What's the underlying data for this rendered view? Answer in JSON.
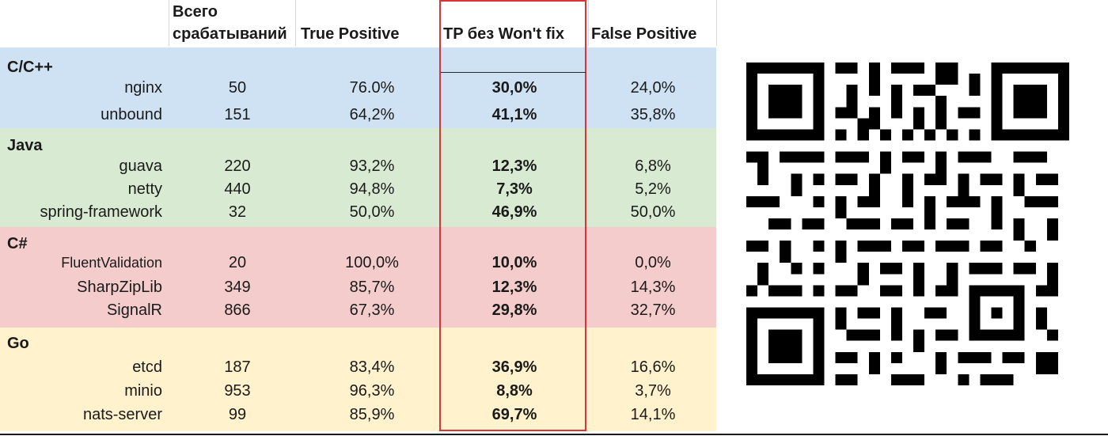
{
  "table": {
    "headers": {
      "total_line1": "Всего",
      "total_line2": "срабатываний",
      "tp": "True Positive",
      "tp_without_wont_fix": "TP без Won't fix",
      "fp": "False Positive"
    },
    "groups": [
      {
        "label": "C/C++",
        "color": "#cfe2f3",
        "rows": [
          {
            "name": "nginx",
            "total": "50",
            "tp": "76.0%",
            "tpw": "30,0%",
            "fp": "24,0%"
          },
          {
            "name": "unbound",
            "total": "151",
            "tp": "64,2%",
            "tpw": "41,1%",
            "fp": "35,8%"
          }
        ]
      },
      {
        "label": "Java",
        "color": "#d9ead3",
        "rows": [
          {
            "name": "guava",
            "total": "220",
            "tp": "93,2%",
            "tpw": "12,3%",
            "fp": "6,8%"
          },
          {
            "name": "netty",
            "total": "440",
            "tp": "94,8%",
            "tpw": "7,3%",
            "fp": "5,2%"
          },
          {
            "name": "spring-framework",
            "total": "32",
            "tp": "50,0%",
            "tpw": "46,9%",
            "fp": "50,0%"
          }
        ]
      },
      {
        "label": "C#",
        "color": "#f4cccc",
        "rows": [
          {
            "name": "FluentValidation",
            "total": "20",
            "tp": "100,0%",
            "tpw": "10,0%",
            "fp": "0,0%"
          },
          {
            "name": "SharpZipLib",
            "total": "349",
            "tp": "85,7%",
            "tpw": "12,3%",
            "fp": "14,3%"
          },
          {
            "name": "SignalR",
            "total": "866",
            "tp": "67,3%",
            "tpw": "29,8%",
            "fp": "32,7%"
          }
        ]
      },
      {
        "label": "Go",
        "color": "#fff2cc",
        "rows": [
          {
            "name": "etcd",
            "total": "187",
            "tp": "83,4%",
            "tpw": "36,9%",
            "fp": "16,6%"
          },
          {
            "name": "minio",
            "total": "953",
            "tp": "96,3%",
            "tpw": "8,8%",
            "fp": "3,7%"
          },
          {
            "name": "nats-server",
            "total": "99",
            "tp": "85,9%",
            "tpw": "69,7%",
            "fp": "14,1%"
          }
        ]
      }
    ]
  },
  "qr_code": {
    "icon": "qr-code-icon",
    "color": "#000000"
  },
  "highlight_color": "#d9343a"
}
